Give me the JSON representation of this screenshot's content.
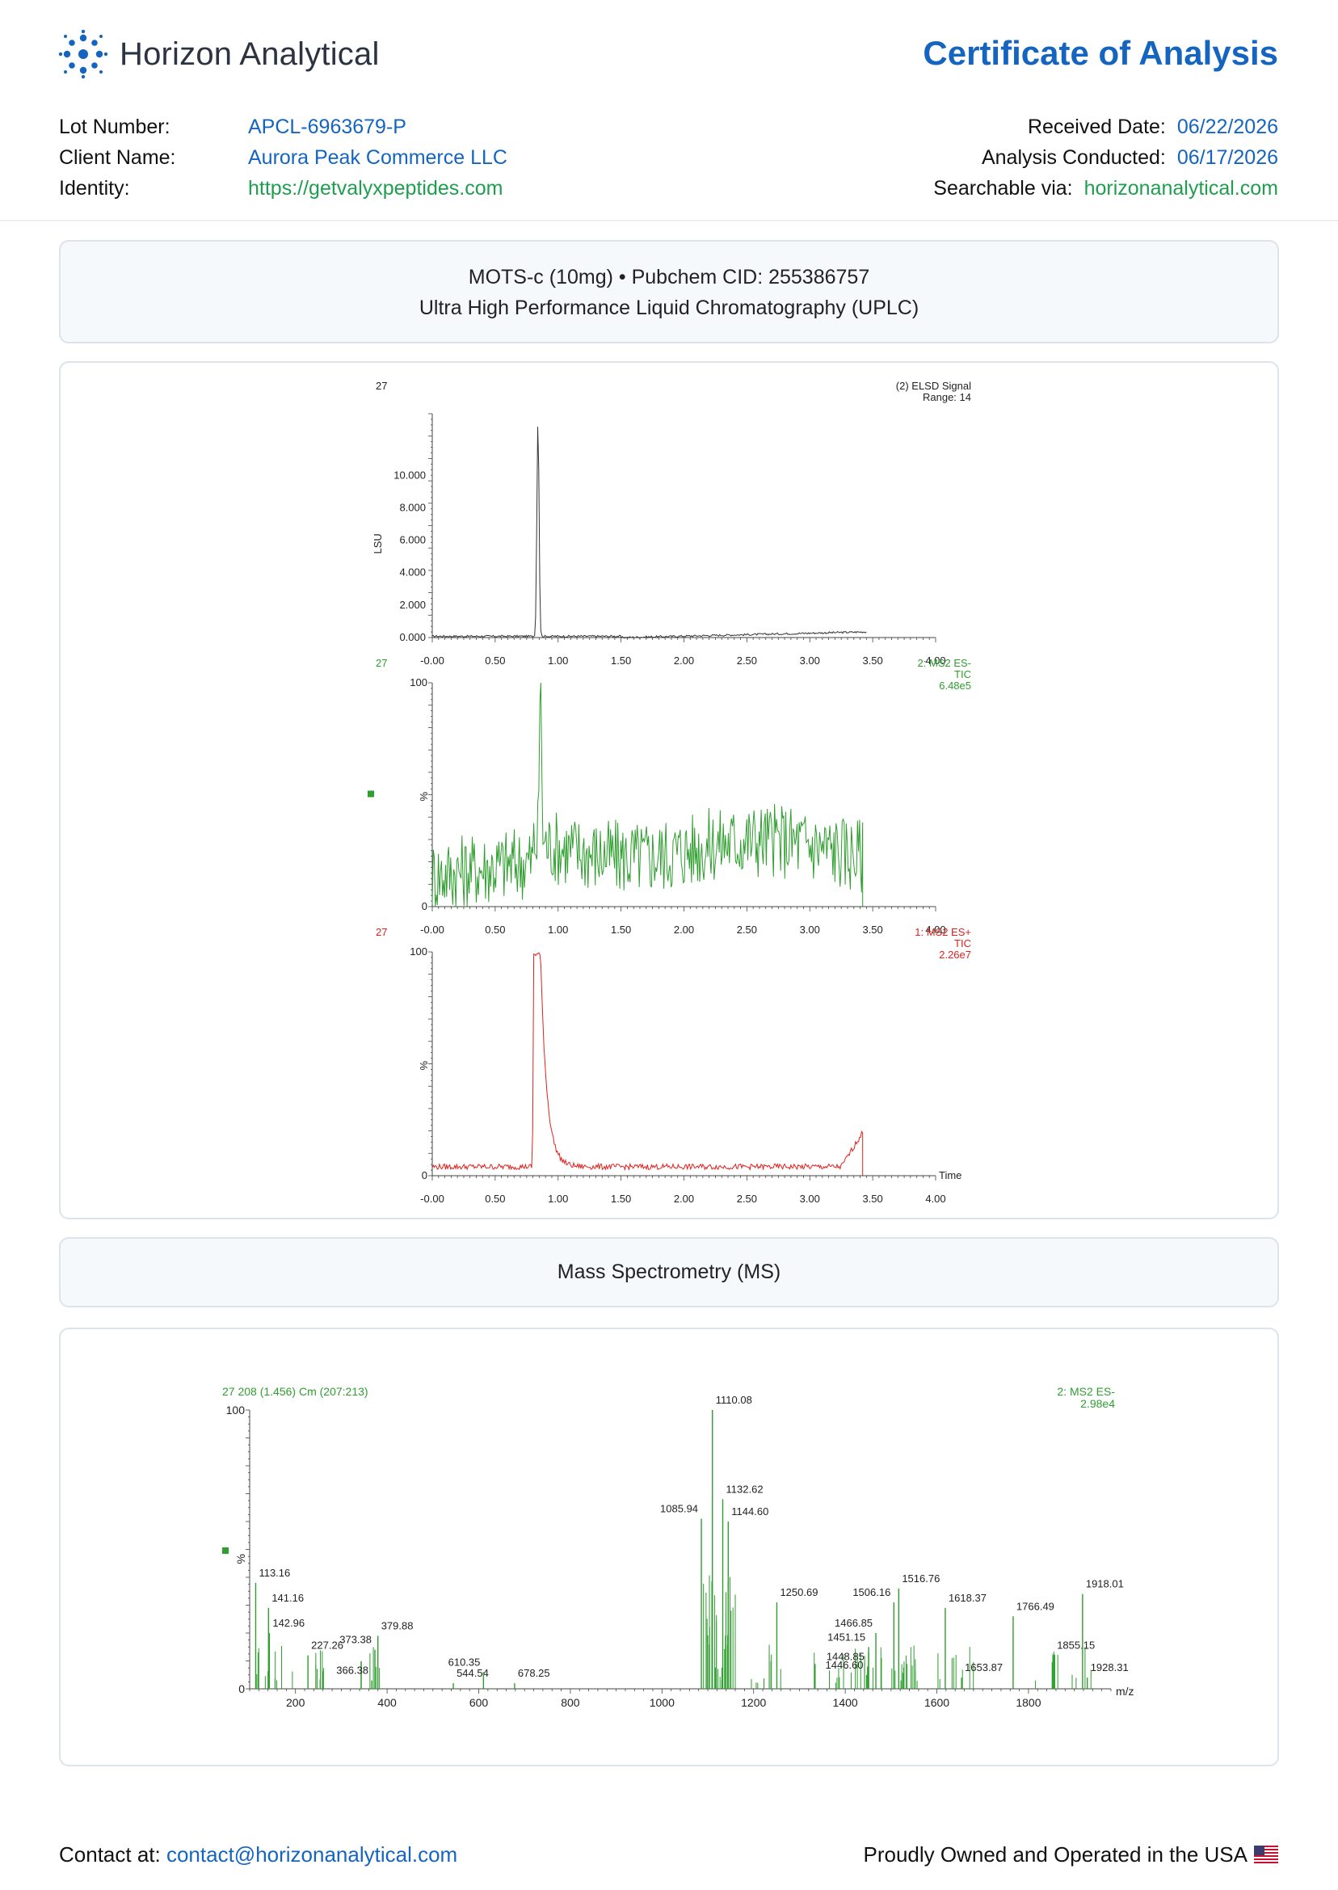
{
  "brand": {
    "name": "Horizon Analytical",
    "logo_icon": "molecule-burst-icon",
    "color": "#1565c0"
  },
  "document": {
    "title": "Certificate of Analysis"
  },
  "meta_left": [
    {
      "label": "Lot Number:",
      "value": "APCL-6963679-P",
      "color": "blue"
    },
    {
      "label": "Client Name:",
      "value": "Aurora Peak Commerce LLC",
      "color": "blue"
    },
    {
      "label": "Identity:",
      "value": "https://getvalyxpeptides.com",
      "color": "green"
    }
  ],
  "meta_right": [
    {
      "label": "Received Date:",
      "value": "06/22/2026",
      "color": "blue"
    },
    {
      "label": "Analysis Conducted:",
      "value": "06/17/2026",
      "color": "blue"
    },
    {
      "label": "Searchable via:",
      "value": "horizonanalytical.com",
      "color": "green"
    }
  ],
  "sections": {
    "uplc": {
      "line1": "MOTS-c (10mg) • Pubchem CID: 255386757",
      "line2": "Ultra High Performance Liquid Chromatography (UPLC)"
    },
    "ms": {
      "title": "Mass Spectrometry (MS)"
    }
  },
  "chart_data": [
    {
      "type": "line",
      "id": "elsd",
      "sample_label": "27",
      "legend": [
        "(2) ELSD Signal",
        "Range: 14"
      ],
      "ylabel": "LSU",
      "xlim": [
        0,
        4
      ],
      "ylim": [
        0,
        13.8
      ],
      "yticks": [
        "0.000",
        "2.000",
        "4.000",
        "6.000",
        "8.000",
        "10.000"
      ],
      "xticks": [
        "-0.00",
        "0.50",
        "1.00",
        "1.50",
        "2.00",
        "2.50",
        "3.00",
        "3.50",
        "4.00"
      ],
      "color": "#333333",
      "peaks": [
        {
          "x": 0.84,
          "y": 13.4
        }
      ],
      "x_end": 3.45
    },
    {
      "type": "line",
      "id": "ms2-es-minus",
      "sample_label": "27",
      "legend": [
        "2: MS2 ES-",
        "TIC",
        "6.48e5"
      ],
      "ylabel": "%",
      "ytick_labels": [
        "0",
        "100"
      ],
      "xlim": [
        0,
        4
      ],
      "ylim": [
        0,
        100
      ],
      "xticks": [
        "-0.00",
        "0.50",
        "1.00",
        "1.50",
        "2.00",
        "2.50",
        "3.00",
        "3.50",
        "4.00"
      ],
      "color": "#2e9e2e",
      "peaks": [
        {
          "x": 0.86,
          "y": 100
        }
      ],
      "x_end": 3.42
    },
    {
      "type": "line",
      "id": "ms1-es-plus",
      "sample_label": "27",
      "legend": [
        "1: MS2 ES+",
        "TIC",
        "2.26e7"
      ],
      "ylabel": "%",
      "xlabel": "Time",
      "ytick_labels": [
        "0",
        "100"
      ],
      "xlim": [
        0,
        4
      ],
      "ylim": [
        0,
        100
      ],
      "xticks": [
        "-0.00",
        "0.50",
        "1.00",
        "1.50",
        "2.00",
        "2.50",
        "3.00",
        "3.50",
        "4.00"
      ],
      "color": "#e0201c",
      "peaks": [
        {
          "x": 0.86,
          "y": 100
        }
      ],
      "x_end": 3.42
    },
    {
      "type": "bar",
      "id": "ms-spectrum",
      "header": "27 208 (1.456) Cm (207:213)",
      "legend": [
        "2: MS2 ES-",
        "2.98e4"
      ],
      "ylabel": "%",
      "xlabel": "m/z",
      "ytick_labels": [
        "0",
        "100"
      ],
      "xlim": [
        100,
        1980
      ],
      "ylim": [
        0,
        100
      ],
      "xticks": [
        "200",
        "400",
        "600",
        "800",
        "1000",
        "1200",
        "1400",
        "1600",
        "1800"
      ],
      "color": "#2e9e2e",
      "labeled_peaks": [
        {
          "mz": 113.16,
          "rel": 38,
          "label": "113.16"
        },
        {
          "mz": 141.16,
          "rel": 29,
          "label": "141.16"
        },
        {
          "mz": 142.96,
          "rel": 20,
          "label": "142.96"
        },
        {
          "mz": 227.26,
          "rel": 12,
          "label": "227.26"
        },
        {
          "mz": 366.38,
          "rel": 3,
          "label": "366.38"
        },
        {
          "mz": 373.38,
          "rel": 14,
          "label": "373.38"
        },
        {
          "mz": 379.88,
          "rel": 19,
          "label": "379.88"
        },
        {
          "mz": 544.54,
          "rel": 2,
          "label": "544.54"
        },
        {
          "mz": 610.35,
          "rel": 6,
          "label": "610.35"
        },
        {
          "mz": 678.25,
          "rel": 2,
          "label": "678.25"
        },
        {
          "mz": 1085.94,
          "rel": 61,
          "label": "1085.94"
        },
        {
          "mz": 1110.08,
          "rel": 100,
          "label": "1110.08"
        },
        {
          "mz": 1132.62,
          "rel": 68,
          "label": "1132.62"
        },
        {
          "mz": 1144.6,
          "rel": 60,
          "label": "1144.60"
        },
        {
          "mz": 1250.69,
          "rel": 31,
          "label": "1250.69"
        },
        {
          "mz": 1446.6,
          "rel": 5,
          "label": "1446.60"
        },
        {
          "mz": 1448.85,
          "rel": 8,
          "label": "1448.85"
        },
        {
          "mz": 1451.15,
          "rel": 15,
          "label": "1451.15"
        },
        {
          "mz": 1466.85,
          "rel": 20,
          "label": "1466.85"
        },
        {
          "mz": 1506.16,
          "rel": 31,
          "label": "1506.16"
        },
        {
          "mz": 1516.76,
          "rel": 36,
          "label": "1516.76"
        },
        {
          "mz": 1618.37,
          "rel": 29,
          "label": "1618.37"
        },
        {
          "mz": 1653.87,
          "rel": 4,
          "label": "1653.87"
        },
        {
          "mz": 1766.49,
          "rel": 26,
          "label": "1766.49"
        },
        {
          "mz": 1855.15,
          "rel": 12,
          "label": "1855.15"
        },
        {
          "mz": 1918.01,
          "rel": 34,
          "label": "1918.01"
        },
        {
          "mz": 1928.31,
          "rel": 4,
          "label": "1928.31"
        }
      ]
    }
  ],
  "footer": {
    "contact_label": "Contact at:",
    "contact_email": "contact@horizonanalytical.com",
    "tagline": "Proudly Owned and Operated in the USA",
    "flag_icon": "us-flag-icon"
  }
}
